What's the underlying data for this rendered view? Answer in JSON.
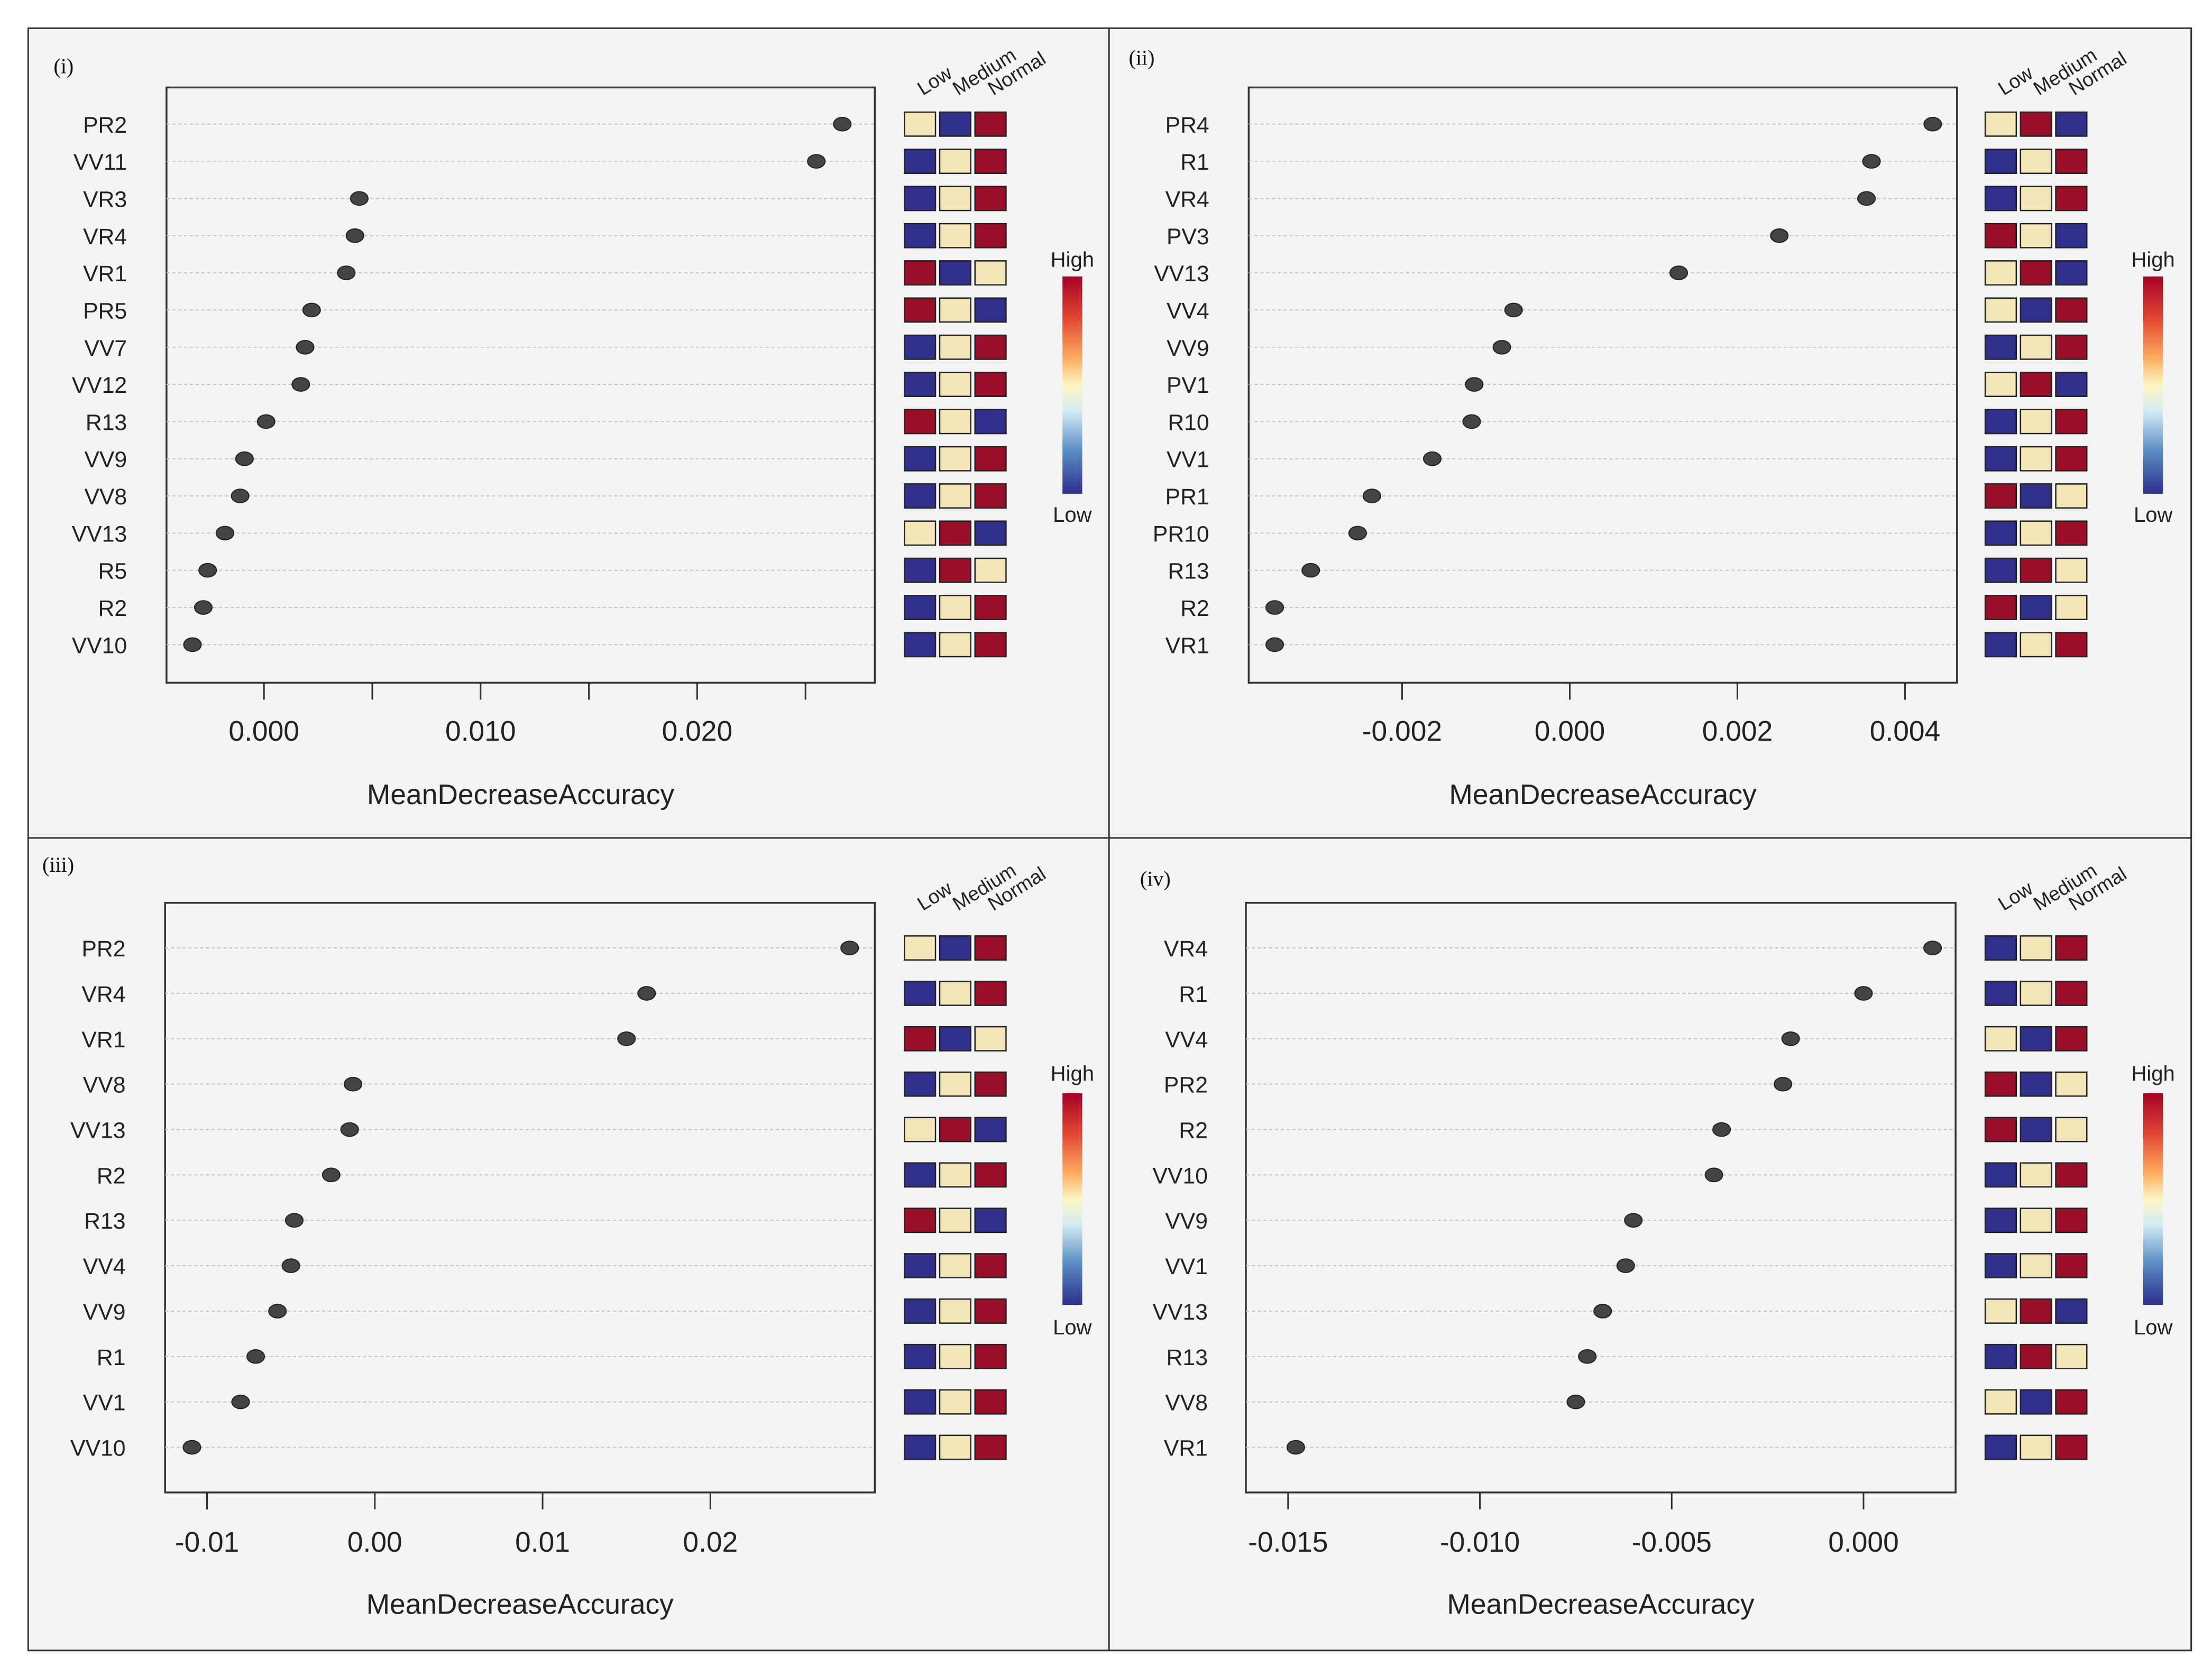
{
  "figure": {
    "heat_scale": {
      "high": "High",
      "low": "Low"
    },
    "level_headers": [
      "Low",
      "Medium",
      "Normal"
    ],
    "colors": {
      "low": "#30308c",
      "medium": "#f3e6b8",
      "normal": "#9b0e2a",
      "dot": "#444444",
      "panel_bg": "#f4f4f4"
    }
  },
  "chart_data": [
    {
      "type": "scatter",
      "panel_label": "(i)",
      "xlabel": "MeanDecreaseAccuracy",
      "xlim": [
        -0.0045,
        0.0282
      ],
      "xticks": [
        0.0,
        0.005,
        0.01,
        0.015,
        0.02,
        0.025
      ],
      "xticklabels": [
        "0.000",
        "",
        "0.010",
        "",
        "0.020",
        ""
      ],
      "features": [
        "PR2",
        "VV11",
        "VR3",
        "VR4",
        "VR1",
        "PR5",
        "VV7",
        "VV12",
        "R13",
        "VV9",
        "VV8",
        "VV13",
        "R5",
        "R2",
        "VV10"
      ],
      "values": [
        0.0267,
        0.0255,
        0.0044,
        0.0042,
        0.0038,
        0.0022,
        0.0019,
        0.0017,
        0.0001,
        -0.0009,
        -0.0011,
        -0.0018,
        -0.0026,
        -0.0028,
        -0.0033
      ],
      "levels": [
        [
          "medium",
          "low",
          "normal"
        ],
        [
          "low",
          "medium",
          "normal"
        ],
        [
          "low",
          "medium",
          "normal"
        ],
        [
          "low",
          "medium",
          "normal"
        ],
        [
          "normal",
          "low",
          "medium"
        ],
        [
          "normal",
          "medium",
          "low"
        ],
        [
          "low",
          "medium",
          "normal"
        ],
        [
          "low",
          "medium",
          "normal"
        ],
        [
          "normal",
          "medium",
          "low"
        ],
        [
          "low",
          "medium",
          "normal"
        ],
        [
          "low",
          "medium",
          "normal"
        ],
        [
          "medium",
          "normal",
          "low"
        ],
        [
          "low",
          "normal",
          "medium"
        ],
        [
          "low",
          "medium",
          "normal"
        ],
        [
          "low",
          "medium",
          "normal"
        ]
      ]
    },
    {
      "type": "scatter",
      "panel_label": "(ii)",
      "xlabel": "MeanDecreaseAccuracy",
      "xlim": [
        -0.00383,
        0.00462
      ],
      "xticks": [
        -0.002,
        0.0,
        0.002,
        0.004
      ],
      "xticklabels": [
        "-0.002",
        "0.000",
        "0.002",
        "0.004"
      ],
      "features": [
        "PR4",
        "R1",
        "VR4",
        "PV3",
        "VV13",
        "VV4",
        "VV9",
        "PV1",
        "R10",
        "VV1",
        "PR1",
        "PR10",
        "R13",
        "R2",
        "VR1"
      ],
      "values": [
        0.00433,
        0.0036,
        0.00354,
        0.0025,
        0.0013,
        -0.00067,
        -0.00081,
        -0.00114,
        -0.00117,
        -0.00164,
        -0.00236,
        -0.00253,
        -0.00309,
        -0.00352,
        -0.00352
      ],
      "levels": [
        [
          "medium",
          "normal",
          "low"
        ],
        [
          "low",
          "medium",
          "normal"
        ],
        [
          "low",
          "medium",
          "normal"
        ],
        [
          "normal",
          "medium",
          "low"
        ],
        [
          "medium",
          "normal",
          "low"
        ],
        [
          "medium",
          "low",
          "normal"
        ],
        [
          "low",
          "medium",
          "normal"
        ],
        [
          "medium",
          "normal",
          "low"
        ],
        [
          "low",
          "medium",
          "normal"
        ],
        [
          "low",
          "medium",
          "normal"
        ],
        [
          "normal",
          "low",
          "medium"
        ],
        [
          "low",
          "medium",
          "normal"
        ],
        [
          "low",
          "normal",
          "medium"
        ],
        [
          "normal",
          "low",
          "medium"
        ],
        [
          "low",
          "medium",
          "normal"
        ]
      ]
    },
    {
      "type": "scatter",
      "panel_label": "(iii)",
      "xlabel": "MeanDecreaseAccuracy",
      "xlim": [
        -0.0125,
        0.0298
      ],
      "xticks": [
        -0.01,
        0.0,
        0.01,
        0.02
      ],
      "xticklabels": [
        "-0.01",
        "0.00",
        "0.01",
        "0.02"
      ],
      "features": [
        "PR2",
        "VR4",
        "VR1",
        "VV8",
        "VV13",
        "R2",
        "R13",
        "VV4",
        "VV9",
        "R1",
        "VV1",
        "VV10"
      ],
      "values": [
        0.0283,
        0.0162,
        0.015,
        -0.0013,
        -0.0015,
        -0.0026,
        -0.0048,
        -0.005,
        -0.0058,
        -0.0071,
        -0.008,
        -0.0109
      ],
      "levels": [
        [
          "medium",
          "low",
          "normal"
        ],
        [
          "low",
          "medium",
          "normal"
        ],
        [
          "normal",
          "low",
          "medium"
        ],
        [
          "low",
          "medium",
          "normal"
        ],
        [
          "medium",
          "normal",
          "low"
        ],
        [
          "low",
          "medium",
          "normal"
        ],
        [
          "normal",
          "medium",
          "low"
        ],
        [
          "low",
          "medium",
          "normal"
        ],
        [
          "low",
          "medium",
          "normal"
        ],
        [
          "low",
          "medium",
          "normal"
        ],
        [
          "low",
          "medium",
          "normal"
        ],
        [
          "low",
          "medium",
          "normal"
        ]
      ]
    },
    {
      "type": "scatter",
      "panel_label": "(iv)",
      "xlabel": "MeanDecreaseAccuracy",
      "xlim": [
        -0.0161,
        0.0024
      ],
      "xticks": [
        -0.015,
        -0.01,
        -0.005,
        0.0
      ],
      "xticklabels": [
        "-0.015",
        "-0.010",
        "-0.005",
        "0.000"
      ],
      "features": [
        "VR4",
        "R1",
        "VV4",
        "PR2",
        "R2",
        "VV10",
        "VV9",
        "VV1",
        "VV13",
        "R13",
        "VV8",
        "VR1"
      ],
      "values": [
        0.0018,
        0.0,
        -0.0019,
        -0.0021,
        -0.0037,
        -0.0039,
        -0.006,
        -0.0062,
        -0.0068,
        -0.0072,
        -0.0075,
        -0.0148
      ],
      "levels": [
        [
          "low",
          "medium",
          "normal"
        ],
        [
          "low",
          "medium",
          "normal"
        ],
        [
          "medium",
          "low",
          "normal"
        ],
        [
          "normal",
          "low",
          "medium"
        ],
        [
          "normal",
          "low",
          "medium"
        ],
        [
          "low",
          "medium",
          "normal"
        ],
        [
          "low",
          "medium",
          "normal"
        ],
        [
          "low",
          "medium",
          "normal"
        ],
        [
          "medium",
          "normal",
          "low"
        ],
        [
          "low",
          "normal",
          "medium"
        ],
        [
          "medium",
          "low",
          "normal"
        ],
        [
          "low",
          "medium",
          "normal"
        ]
      ]
    }
  ]
}
